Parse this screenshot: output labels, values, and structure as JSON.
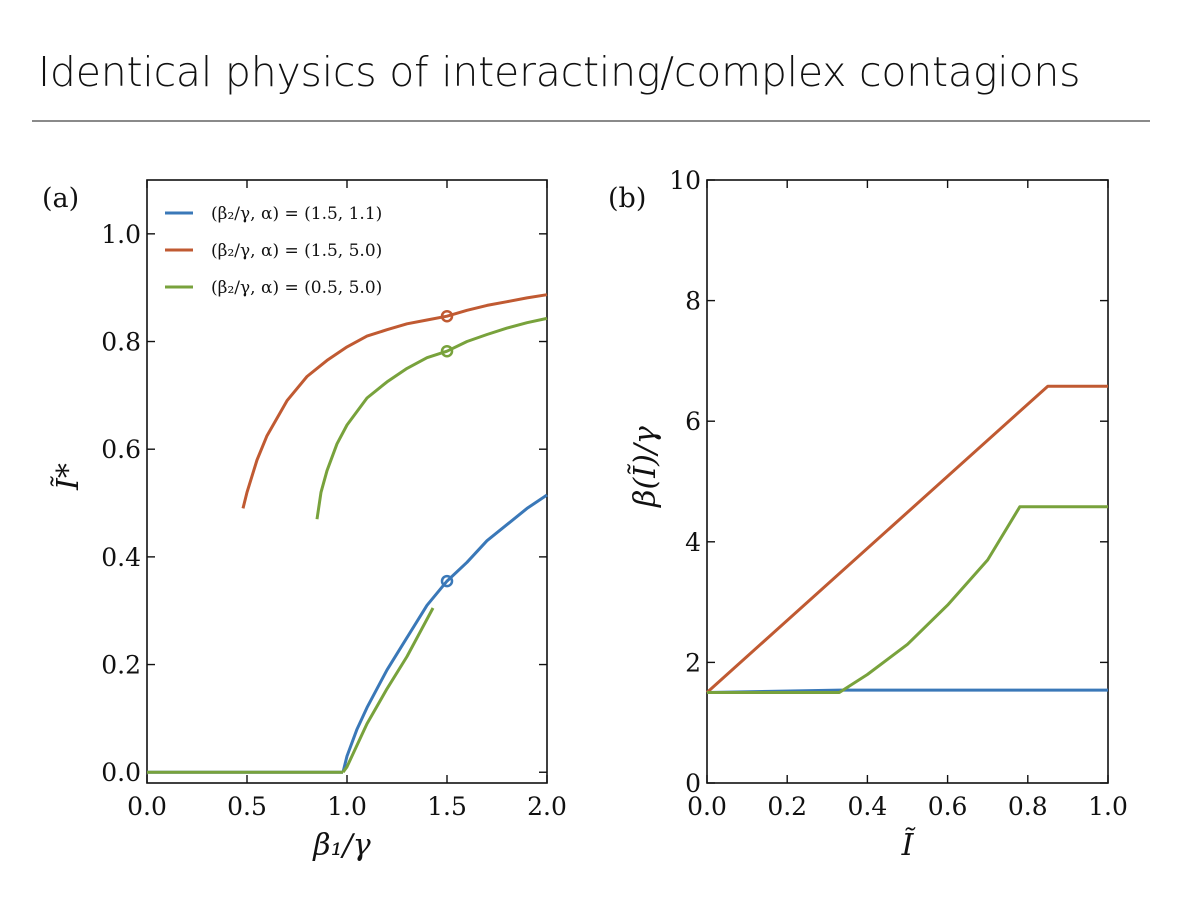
{
  "slide": {
    "title": "Identical physics of interacting/complex contagions"
  },
  "colors": {
    "blue": "#3a78b8",
    "orange": "#c05a32",
    "green": "#78a23c"
  },
  "chart_data": [
    {
      "type": "line",
      "panel_label": "(a)",
      "xlabel": "β₁/γ",
      "ylabel": "Ĩ*",
      "xlim": [
        0.0,
        2.0
      ],
      "ylim": [
        -0.02,
        1.1
      ],
      "xticks": [
        "0.0",
        "0.5",
        "1.0",
        "1.5",
        "2.0"
      ],
      "yticks": [
        "0.0",
        "0.2",
        "0.4",
        "0.6",
        "0.8",
        "1.0"
      ],
      "legend_position": "upper-left",
      "series": [
        {
          "name": "(β₂/γ, α) = (1.5, 1.1)",
          "color": "blue",
          "segments": [
            [
              [
                0.0,
                0.0
              ],
              [
                0.98,
                0.0
              ]
            ],
            [
              [
                0.98,
                0.0
              ],
              [
                1.0,
                0.03
              ],
              [
                1.05,
                0.08
              ],
              [
                1.1,
                0.12
              ],
              [
                1.2,
                0.19
              ],
              [
                1.3,
                0.25
              ],
              [
                1.4,
                0.31
              ],
              [
                1.5,
                0.355
              ],
              [
                1.6,
                0.39
              ],
              [
                1.7,
                0.43
              ],
              [
                1.8,
                0.46
              ],
              [
                1.9,
                0.49
              ],
              [
                2.0,
                0.515
              ]
            ]
          ],
          "marker": [
            1.5,
            0.355
          ]
        },
        {
          "name": "(β₂/γ, α) = (1.5, 5.0)",
          "color": "orange",
          "segments": [
            [
              [
                0.48,
                0.49
              ],
              [
                0.5,
                0.52
              ],
              [
                0.55,
                0.58
              ],
              [
                0.6,
                0.625
              ],
              [
                0.7,
                0.69
              ],
              [
                0.8,
                0.735
              ],
              [
                0.9,
                0.765
              ],
              [
                1.0,
                0.79
              ],
              [
                1.1,
                0.81
              ],
              [
                1.2,
                0.822
              ],
              [
                1.3,
                0.833
              ],
              [
                1.4,
                0.84
              ],
              [
                1.5,
                0.847
              ],
              [
                1.6,
                0.858
              ],
              [
                1.7,
                0.867
              ],
              [
                1.8,
                0.874
              ],
              [
                1.9,
                0.881
              ],
              [
                2.0,
                0.887
              ]
            ]
          ],
          "marker": [
            1.5,
            0.847
          ]
        },
        {
          "name": "(β₂/γ, α) = (0.5, 5.0)",
          "color": "green",
          "segments": [
            [
              [
                0.0,
                0.0
              ],
              [
                0.98,
                0.0
              ]
            ],
            [
              [
                0.98,
                0.0
              ],
              [
                1.0,
                0.01
              ],
              [
                1.05,
                0.05
              ],
              [
                1.1,
                0.09
              ],
              [
                1.2,
                0.155
              ],
              [
                1.3,
                0.215
              ],
              [
                1.43,
                0.305
              ]
            ],
            [
              [
                0.85,
                0.47
              ],
              [
                0.87,
                0.52
              ],
              [
                0.9,
                0.56
              ],
              [
                0.95,
                0.61
              ],
              [
                1.0,
                0.645
              ],
              [
                1.1,
                0.695
              ],
              [
                1.2,
                0.725
              ],
              [
                1.3,
                0.75
              ],
              [
                1.4,
                0.77
              ],
              [
                1.5,
                0.782
              ],
              [
                1.6,
                0.8
              ],
              [
                1.7,
                0.813
              ],
              [
                1.8,
                0.825
              ],
              [
                1.9,
                0.835
              ],
              [
                2.0,
                0.843
              ]
            ]
          ],
          "marker": [
            1.5,
            0.782
          ]
        }
      ]
    },
    {
      "type": "line",
      "panel_label": "(b)",
      "xlabel": "Ĩ",
      "ylabel": "β(Ĩ)/γ",
      "xlim": [
        0.0,
        1.0
      ],
      "ylim": [
        0.0,
        10.0
      ],
      "xticks": [
        "0.0",
        "0.2",
        "0.4",
        "0.6",
        "0.8",
        "1.0"
      ],
      "yticks": [
        "0",
        "2",
        "4",
        "6",
        "8",
        "10"
      ],
      "series": [
        {
          "color": "blue",
          "points": [
            [
              0.0,
              1.5
            ],
            [
              0.33,
              1.54
            ],
            [
              1.0,
              1.54
            ]
          ]
        },
        {
          "color": "orange",
          "points": [
            [
              0.0,
              1.5
            ],
            [
              0.85,
              6.58
            ],
            [
              1.0,
              6.58
            ]
          ]
        },
        {
          "color": "green",
          "points": [
            [
              0.0,
              1.5
            ],
            [
              0.33,
              1.5
            ],
            [
              0.4,
              1.8
            ],
            [
              0.5,
              2.3
            ],
            [
              0.6,
              2.95
            ],
            [
              0.7,
              3.7
            ],
            [
              0.78,
              4.58
            ],
            [
              1.0,
              4.58
            ]
          ]
        }
      ]
    }
  ]
}
